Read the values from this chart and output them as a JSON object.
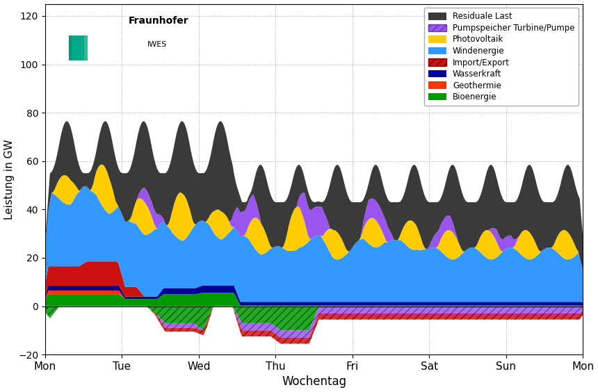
{
  "title": "",
  "xlabel": "Wochentag",
  "ylabel": "Leistung in GW",
  "xlim": [
    0,
    336
  ],
  "ylim": [
    -20,
    125
  ],
  "yticks": [
    -20,
    0,
    20,
    40,
    60,
    80,
    100,
    120
  ],
  "xtick_positions": [
    0,
    48,
    96,
    144,
    192,
    240,
    288,
    336
  ],
  "xtick_labels": [
    "Mon",
    "Tue",
    "Wed",
    "Thu",
    "Fri",
    "Sat",
    "Sun",
    "Mon"
  ],
  "colors": {
    "bioenergie": "#009900",
    "geothermie": "#ff3300",
    "wasserkraft": "#000099",
    "import_export": "#cc1111",
    "windenergie": "#3399ff",
    "photovoltaik": "#ffcc00",
    "pumpspeicher": "#9955ee",
    "residuale_last": "#3a3a3a"
  }
}
